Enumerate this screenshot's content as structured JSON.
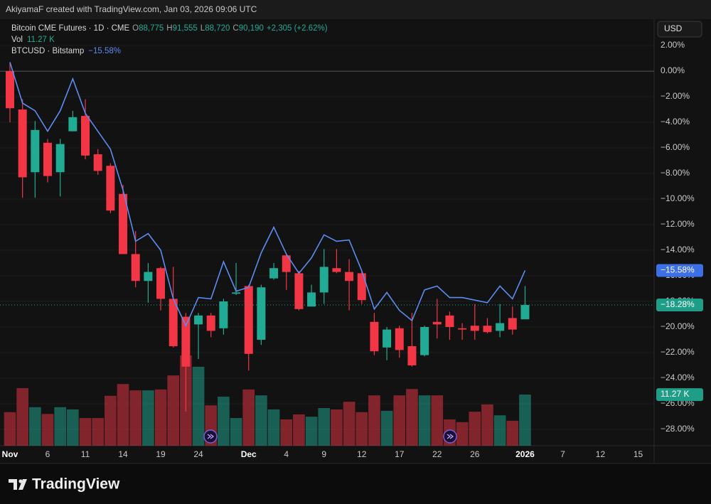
{
  "header": {
    "text": "AkiyamaF created with TradingView.com, Jan 03, 2026 09:06 UTC"
  },
  "currency": "USD",
  "brand": "TradingView",
  "chart_data": {
    "type": "candlestick",
    "legend": {
      "ohlc": [
        {
          "key": "O",
          "value": "88,775"
        },
        {
          "key": "H",
          "value": "91,555"
        },
        {
          "key": "L",
          "value": "88,720"
        },
        {
          "key": "C",
          "value": "90,190"
        }
      ],
      "change": "+2,305 (+2.62%)"
    },
    "categories": [
      "Nov",
      null,
      null,
      "6",
      null,
      null,
      "11",
      null,
      null,
      "14",
      null,
      null,
      "19",
      null,
      null,
      "24",
      null,
      null,
      null,
      "Dec",
      null,
      null,
      "4",
      null,
      null,
      "9",
      null,
      null,
      "12",
      null,
      null,
      "17",
      null,
      null,
      "22",
      null,
      null,
      "26",
      null,
      null,
      null,
      "2026",
      null,
      null,
      "7",
      null,
      null,
      "12",
      null,
      null,
      "15"
    ],
    "series": [
      {
        "name": "Bitcoin CME Futures · 1D · CME",
        "type": "candlestick",
        "up_color": "#22ab94",
        "down_color": "#f23645",
        "open": [
          0.0,
          -3.0,
          -7.9,
          -5.6,
          -7.9,
          -4.7,
          -3.5,
          -6.5,
          -7.4,
          -9.6,
          -14.3,
          -16.4,
          -15.4,
          -17.8,
          -19.2,
          -19.8,
          -19.1,
          -20.1,
          -17.4,
          -16.8,
          -21.0,
          -16.2,
          -14.4,
          -15.8,
          -18.4,
          -17.3,
          -15.4,
          -15.7,
          -15.8,
          -19.6,
          -21.6,
          -20.1,
          -21.5,
          -22.2,
          -19.6,
          -19.1,
          -20.1,
          -19.9,
          -19.9,
          -20.3,
          -19.3,
          -19.4,
          null,
          null,
          null,
          null,
          null,
          null,
          null,
          null,
          null
        ],
        "high": [
          0.7,
          -2.2,
          -3.9,
          -5.3,
          -5.3,
          -3.1,
          -2.2,
          -6.1,
          -7.2,
          -8.9,
          -12.5,
          -15.0,
          -15.3,
          -15.3,
          -18.9,
          -18.9,
          -18.9,
          -17.8,
          -15.0,
          -16.7,
          -16.7,
          -15.0,
          -14.3,
          -15.6,
          -16.7,
          -13.9,
          -13.9,
          -14.7,
          -15.6,
          -18.9,
          -20.0,
          -19.9,
          -18.9,
          -19.9,
          -17.8,
          -18.8,
          -19.7,
          -18.2,
          -19.3,
          -18.2,
          -18.4,
          -16.8,
          null,
          null,
          null,
          null,
          null,
          null,
          null,
          null,
          null
        ],
        "low": [
          -4.0,
          -9.9,
          -9.9,
          -8.7,
          -9.8,
          -4.7,
          -6.9,
          -8.1,
          -11.1,
          -14.3,
          -16.9,
          -18.1,
          -18.7,
          -21.6,
          -26.6,
          -22.5,
          -20.8,
          -20.6,
          -17.5,
          -23.4,
          -21.4,
          -16.3,
          -17.1,
          -18.7,
          -18.4,
          -18.2,
          -15.8,
          -18.7,
          -18.2,
          -22.2,
          -22.6,
          -22.4,
          -23.1,
          -22.3,
          -20.9,
          -21.0,
          -21.0,
          -21.0,
          -20.5,
          -20.8,
          -20.6,
          -19.4,
          null,
          null,
          null,
          null,
          null,
          null,
          null,
          null,
          null
        ],
        "close": [
          -2.9,
          -8.3,
          -4.6,
          -8.2,
          -5.7,
          -3.6,
          -6.6,
          -7.8,
          -10.9,
          -14.3,
          -16.4,
          -15.7,
          -17.8,
          -21.5,
          -23.1,
          -19.1,
          -20.3,
          -18.0,
          -17.3,
          -22.1,
          -16.9,
          -15.4,
          -15.7,
          -18.6,
          -17.3,
          -15.3,
          -15.7,
          -16.4,
          -17.9,
          -21.9,
          -20.2,
          -21.8,
          -23.0,
          -20.0,
          -19.8,
          -20.0,
          -20.2,
          -20.3,
          -20.4,
          -19.7,
          -20.2,
          -18.28,
          null,
          null,
          null,
          null,
          null,
          null,
          null,
          null,
          null
        ],
        "value_labels": [
          null,
          null,
          null,
          null,
          null,
          null,
          null,
          null,
          null,
          null,
          null,
          null,
          null,
          null,
          null,
          null,
          null,
          null,
          null,
          null,
          null,
          null,
          null,
          null,
          null,
          null,
          null,
          null,
          null,
          null,
          null,
          null,
          null,
          null,
          null,
          null,
          null,
          null,
          null,
          null,
          null,
          "−18.28%",
          null,
          null,
          null,
          null,
          null,
          null,
          null,
          null,
          null
        ]
      },
      {
        "name": "BTCUSD · Bitstamp",
        "type": "line",
        "color": "#5b8cf0",
        "values": [
          0.7,
          -2.5,
          -3.1,
          -4.7,
          -3.1,
          -0.6,
          -3.3,
          -4.7,
          -6.1,
          -9.3,
          -13.3,
          -12.7,
          -14.0,
          -17.8,
          -19.9,
          -17.7,
          -17.8,
          -14.9,
          -17.2,
          -16.9,
          -14.2,
          -12.2,
          -14.3,
          -15.8,
          -14.6,
          -12.8,
          -13.3,
          -13.2,
          -15.6,
          -18.6,
          -17.3,
          -18.7,
          -19.5,
          -17.1,
          -16.8,
          -17.7,
          -17.7,
          -17.9,
          -18.1,
          -16.8,
          -17.8,
          -15.58,
          null,
          null,
          null,
          null,
          null,
          null,
          null,
          null,
          null
        ],
        "value_labels": [
          null,
          null,
          null,
          null,
          null,
          null,
          null,
          null,
          null,
          null,
          null,
          null,
          null,
          null,
          null,
          null,
          null,
          null,
          null,
          null,
          null,
          null,
          null,
          null,
          null,
          null,
          null,
          null,
          null,
          null,
          null,
          null,
          null,
          null,
          null,
          null,
          null,
          null,
          null,
          null,
          null,
          "−15.58%",
          null,
          null,
          null,
          null,
          null,
          null,
          null,
          null,
          null
        ]
      },
      {
        "name": "Vol",
        "type": "volume",
        "up_color": "rgba(34,171,148,0.5)",
        "down_color": "rgba(242,54,69,0.5)",
        "values": [
          7.4,
          12.7,
          8.5,
          7.0,
          8.5,
          8.0,
          6.1,
          6.1,
          11.0,
          13.6,
          12.2,
          12.2,
          12.4,
          15.5,
          19.9,
          17.4,
          8.9,
          10.8,
          6.1,
          12.4,
          11.1,
          8.0,
          5.8,
          6.9,
          6.4,
          8.3,
          8.0,
          9.7,
          7.4,
          11.1,
          7.7,
          11.1,
          12.5,
          11.1,
          11.1,
          5.8,
          5.2,
          7.5,
          9.1,
          6.7,
          5.5,
          11.27,
          null,
          null,
          null,
          null,
          null,
          null,
          null,
          null,
          null
        ],
        "value_labels": [
          null,
          null,
          null,
          null,
          null,
          null,
          null,
          null,
          null,
          null,
          null,
          null,
          null,
          null,
          null,
          null,
          null,
          null,
          null,
          null,
          null,
          null,
          null,
          null,
          null,
          null,
          null,
          null,
          null,
          null,
          null,
          null,
          null,
          null,
          null,
          null,
          null,
          null,
          null,
          null,
          null,
          "11.27 K",
          null,
          null,
          null,
          null,
          null,
          null,
          null,
          null,
          null
        ]
      }
    ],
    "ylim": [
      -29.28,
      4.06
    ],
    "yticks": [
      {
        "value": 2,
        "label": "2.00%"
      },
      {
        "value": 0,
        "label": "0.00%"
      },
      {
        "value": -2,
        "label": "−2.00%"
      },
      {
        "value": -4,
        "label": "−4.00%"
      },
      {
        "value": -6,
        "label": "−6.00%"
      },
      {
        "value": -8,
        "label": "−8.00%"
      },
      {
        "value": -10,
        "label": "−10.00%"
      },
      {
        "value": -12,
        "label": "−12.00%"
      },
      {
        "value": -14,
        "label": "−14.00%"
      },
      {
        "value": -16,
        "label": "−16.00%"
      },
      {
        "value": -18,
        "label": "−18.00%"
      },
      {
        "value": -20,
        "label": "−20.00%"
      },
      {
        "value": -22,
        "label": "−22.00%"
      },
      {
        "value": -24,
        "label": "−24.00%"
      },
      {
        "value": -26,
        "label": "−26.00%"
      },
      {
        "value": -28,
        "label": "−28.00%"
      }
    ],
    "baseline": 0,
    "grid": true
  }
}
